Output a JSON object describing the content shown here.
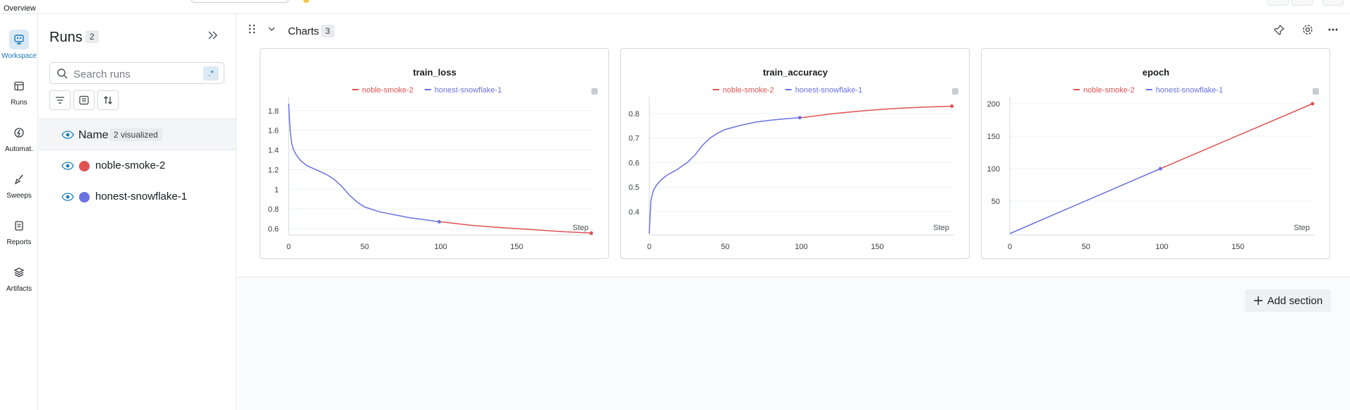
{
  "topbar": {
    "overview_label": "Overview"
  },
  "nav": [
    {
      "label": "Workspace",
      "icon": "workspace-icon",
      "active": true
    },
    {
      "label": "Runs",
      "icon": "table-icon",
      "active": false
    },
    {
      "label": "Automat.",
      "icon": "automation-icon",
      "active": false
    },
    {
      "label": "Sweeps",
      "icon": "broom-icon",
      "active": false
    },
    {
      "label": "Reports",
      "icon": "report-icon",
      "active": false
    },
    {
      "label": "Artifacts",
      "icon": "layers-icon",
      "active": false
    }
  ],
  "runs_panel": {
    "title": "Runs",
    "count": "2",
    "search_placeholder": "Search runs",
    "regex_label": ".*",
    "name_header": "Name",
    "visualized_badge": "2 visualized",
    "runs": [
      {
        "name": "noble-smoke-2",
        "color": "#e05252"
      },
      {
        "name": "honest-snowflake-1",
        "color": "#6a72e0"
      }
    ]
  },
  "section": {
    "title": "Charts",
    "count": "3",
    "add_section_label": "Add section"
  },
  "colors": {
    "accent": "#1a7bb9",
    "red_run": "#e05252",
    "blue_run": "#6a72e0"
  },
  "chart_data": [
    {
      "type": "line",
      "title": "train_loss",
      "xlabel": "Step",
      "x_ticks": [
        "0",
        "50",
        "100",
        "150"
      ],
      "y_ticks": [
        "1.8",
        "1.6",
        "1.4",
        "1.2",
        "1",
        "0.8",
        "0.6"
      ],
      "xlim": [
        0,
        200
      ],
      "ylim": [
        0.55,
        1.87
      ],
      "series": [
        {
          "name": "noble-smoke-2",
          "color": "#e05252",
          "x": [
            100,
            120,
            140,
            160,
            180,
            199
          ],
          "y": [
            0.67,
            0.635,
            0.61,
            0.59,
            0.57,
            0.555
          ]
        },
        {
          "name": "honest-snowflake-1",
          "color": "#6a72e0",
          "x": [
            0,
            1,
            2,
            3,
            5,
            8,
            12,
            18,
            25,
            30,
            35,
            40,
            45,
            50,
            60,
            70,
            80,
            90,
            99
          ],
          "y": [
            1.87,
            1.6,
            1.47,
            1.41,
            1.35,
            1.29,
            1.24,
            1.2,
            1.15,
            1.1,
            1.03,
            0.94,
            0.87,
            0.82,
            0.77,
            0.74,
            0.71,
            0.69,
            0.67
          ]
        }
      ]
    },
    {
      "type": "line",
      "title": "train_accuracy",
      "xlabel": "Step",
      "x_ticks": [
        "0",
        "50",
        "100",
        "150"
      ],
      "y_ticks": [
        "0.8",
        "0.7",
        "0.6",
        "0.5",
        "0.4"
      ],
      "xlim": [
        0,
        200
      ],
      "ylim": [
        0.31,
        0.84
      ],
      "series": [
        {
          "name": "noble-smoke-2",
          "color": "#e05252",
          "x": [
            100,
            120,
            140,
            160,
            180,
            199
          ],
          "y": [
            0.783,
            0.799,
            0.811,
            0.82,
            0.826,
            0.83
          ]
        },
        {
          "name": "honest-snowflake-1",
          "color": "#6a72e0",
          "x": [
            0,
            1,
            2,
            3,
            5,
            8,
            12,
            18,
            25,
            30,
            35,
            40,
            45,
            50,
            60,
            70,
            80,
            90,
            99
          ],
          "y": [
            0.31,
            0.44,
            0.47,
            0.49,
            0.51,
            0.53,
            0.55,
            0.57,
            0.6,
            0.63,
            0.67,
            0.7,
            0.72,
            0.735,
            0.752,
            0.765,
            0.773,
            0.779,
            0.783
          ]
        }
      ]
    },
    {
      "type": "line",
      "title": "epoch",
      "xlabel": "Step",
      "x_ticks": [
        "0",
        "50",
        "100",
        "150"
      ],
      "y_ticks": [
        "200",
        "150",
        "100",
        "50"
      ],
      "xlim": [
        0,
        200
      ],
      "ylim": [
        0,
        200
      ],
      "series": [
        {
          "name": "noble-smoke-2",
          "color": "#e05252",
          "x": [
            99,
            199
          ],
          "y": [
            100,
            200
          ]
        },
        {
          "name": "honest-snowflake-1",
          "color": "#6a72e0",
          "x": [
            0,
            99
          ],
          "y": [
            0,
            100
          ]
        }
      ]
    }
  ]
}
